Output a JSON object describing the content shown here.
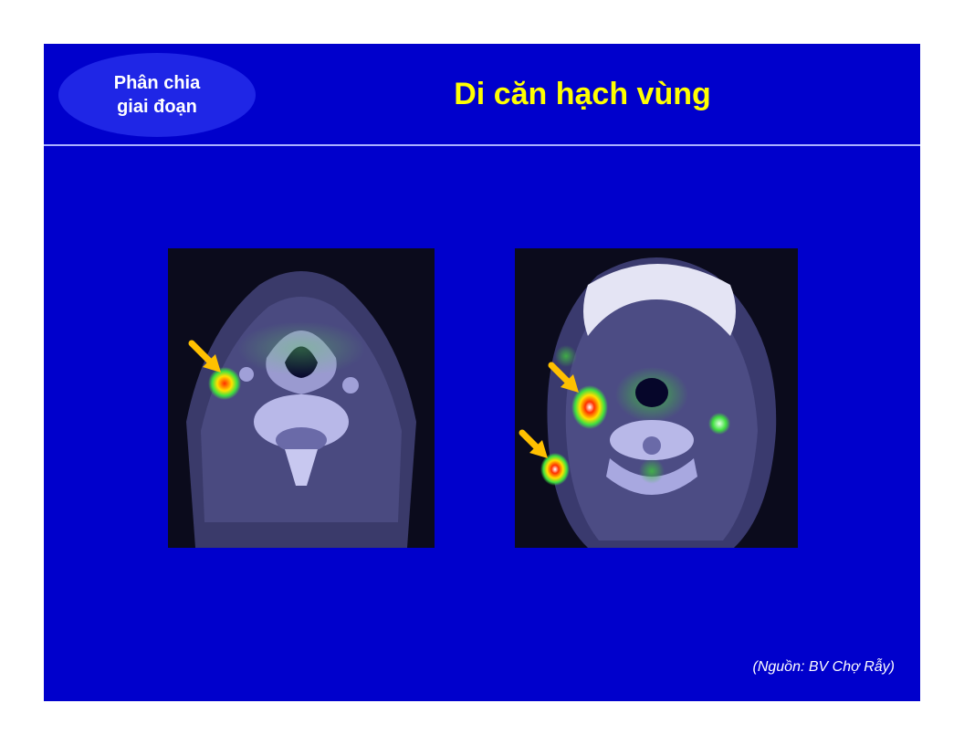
{
  "header": {
    "badge_line1": "Phân chia",
    "badge_line2": "giai đoạn",
    "title": "Di căn hạch vùng"
  },
  "images": [
    {
      "name": "pet-ct-scan-left",
      "arrow_count": 1
    },
    {
      "name": "pet-ct-scan-right",
      "arrow_count": 2
    }
  ],
  "footer": {
    "source": "(Nguồn: BV Chợ Rẫy)"
  },
  "colors": {
    "slide_background": "#0000cc",
    "title": "#ffff00",
    "badge_background": "#1f26e6",
    "arrow": "#ffc000"
  }
}
